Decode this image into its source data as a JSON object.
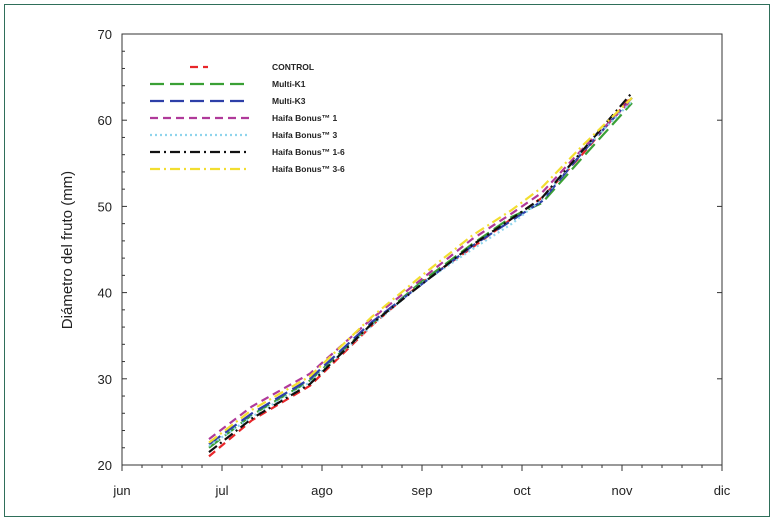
{
  "chart_data": {
    "type": "line",
    "title": "",
    "xlabel": "",
    "ylabel": "Diámetro del fruto (mm)",
    "ylim": [
      20,
      70
    ],
    "yticks": [
      20,
      30,
      40,
      50,
      60,
      70
    ],
    "xlim": [
      0,
      6
    ],
    "x_tick_labels": [
      "jun",
      "jul",
      "ago",
      "sep",
      "oct",
      "nov",
      "dic"
    ],
    "grid": false,
    "legend_position": "top-left",
    "series": [
      {
        "name": "CONTROL",
        "color": "#e8262a",
        "style": "dash",
        "points": [
          [
            0.87,
            21.0
          ],
          [
            1.3,
            25.2
          ],
          [
            1.88,
            29.2
          ],
          [
            2.5,
            36.2
          ],
          [
            3.0,
            41.2
          ],
          [
            3.5,
            45.2
          ],
          [
            3.9,
            48.6
          ],
          [
            4.2,
            51.0
          ],
          [
            4.6,
            56.0
          ],
          [
            5.1,
            62.8
          ]
        ]
      },
      {
        "name": "Multi-K1",
        "color": "#3aa035",
        "style": "longdash",
        "points": [
          [
            0.87,
            22.0
          ],
          [
            1.3,
            25.8
          ],
          [
            1.88,
            29.8
          ],
          [
            2.5,
            36.4
          ],
          [
            3.0,
            41.3
          ],
          [
            3.5,
            45.6
          ],
          [
            3.9,
            48.8
          ],
          [
            4.2,
            50.4
          ],
          [
            4.6,
            55.6
          ],
          [
            5.1,
            62.0
          ]
        ]
      },
      {
        "name": "Multi-K3",
        "color": "#2d3fa8",
        "style": "longdash",
        "points": [
          [
            0.87,
            22.4
          ],
          [
            1.3,
            26.0
          ],
          [
            1.88,
            30.0
          ],
          [
            2.5,
            36.6
          ],
          [
            3.0,
            41.0
          ],
          [
            3.5,
            45.4
          ],
          [
            3.9,
            48.4
          ],
          [
            4.2,
            50.6
          ],
          [
            4.6,
            56.2
          ],
          [
            5.1,
            62.6
          ]
        ]
      },
      {
        "name": "Haifa Bonus™ 1",
        "color": "#b03a9a",
        "style": "dash",
        "points": [
          [
            0.87,
            23.0
          ],
          [
            1.3,
            26.8
          ],
          [
            1.88,
            30.6
          ],
          [
            2.5,
            37.0
          ],
          [
            3.0,
            41.6
          ],
          [
            3.5,
            46.2
          ],
          [
            3.9,
            49.2
          ],
          [
            4.2,
            51.6
          ],
          [
            4.6,
            56.6
          ],
          [
            5.1,
            62.4
          ]
        ]
      },
      {
        "name": "Haifa Bonus™ 3",
        "color": "#8fd4ec",
        "style": "dot",
        "points": [
          [
            0.87,
            22.2
          ],
          [
            1.3,
            25.6
          ],
          [
            1.88,
            29.6
          ],
          [
            2.5,
            36.2
          ],
          [
            3.0,
            41.1
          ],
          [
            3.5,
            45.0
          ],
          [
            3.9,
            48.0
          ],
          [
            4.2,
            50.8
          ],
          [
            4.6,
            56.4
          ],
          [
            5.1,
            62.2
          ]
        ]
      },
      {
        "name": "Haifa Bonus™ 1-6",
        "color": "#111111",
        "style": "dashdot",
        "points": [
          [
            0.87,
            21.5
          ],
          [
            1.3,
            25.4
          ],
          [
            1.88,
            29.4
          ],
          [
            2.5,
            36.4
          ],
          [
            3.0,
            41.0
          ],
          [
            3.5,
            45.5
          ],
          [
            3.9,
            48.6
          ],
          [
            4.2,
            51.0
          ],
          [
            4.6,
            56.4
          ],
          [
            5.1,
            63.2
          ]
        ]
      },
      {
        "name": "Haifa Bonus™ 3-6",
        "color": "#f2de30",
        "style": "dashdot",
        "points": [
          [
            0.87,
            22.6
          ],
          [
            1.3,
            26.4
          ],
          [
            1.88,
            30.3
          ],
          [
            2.5,
            37.2
          ],
          [
            3.0,
            42.0
          ],
          [
            3.5,
            46.6
          ],
          [
            3.9,
            49.6
          ],
          [
            4.2,
            52.2
          ],
          [
            4.6,
            57.0
          ],
          [
            5.1,
            62.6
          ]
        ]
      }
    ]
  }
}
